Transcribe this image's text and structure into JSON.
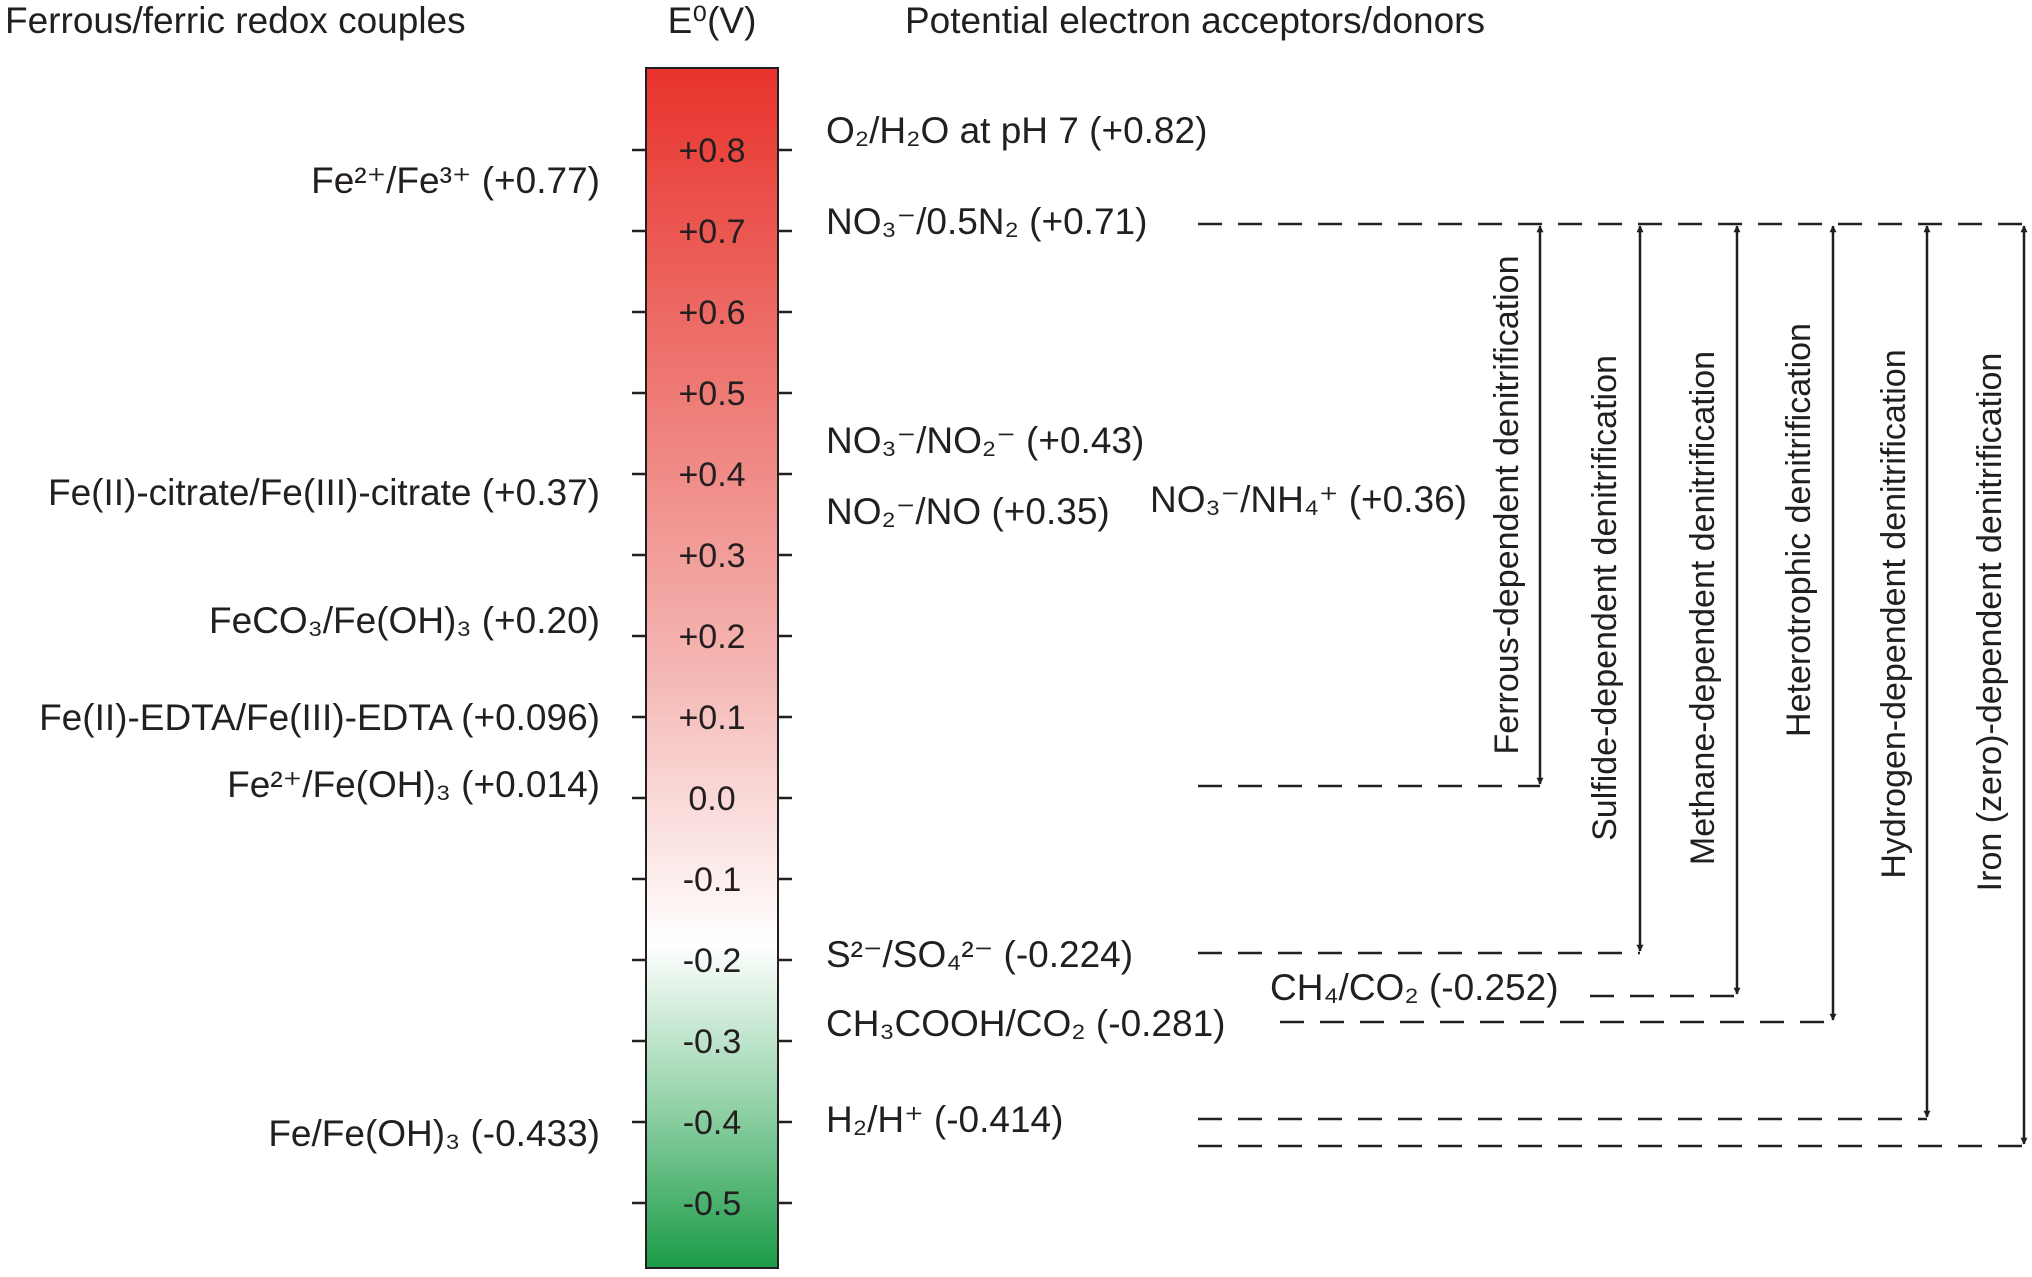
{
  "headers": {
    "left": "Ferrous/ferric redox couples",
    "center": "E⁰(V)",
    "right": "Potential electron acceptors/donors"
  },
  "scale": {
    "ticks": [
      "+0.8",
      "+0.7",
      "+0.6",
      "+0.5",
      "+0.4",
      "+0.3",
      "+0.2",
      "+0.1",
      "0.0",
      "-0.1",
      "-0.2",
      "-0.3",
      "-0.4",
      "-0.5"
    ],
    "colors": {
      "top": "#e8332c",
      "middle": "#ffffff",
      "bottom": "#1a9b47"
    }
  },
  "ferrous_couples": [
    {
      "label": "Fe²⁺/Fe³⁺ (+0.77)",
      "value": 0.77
    },
    {
      "label": "Fe(II)-citrate/Fe(III)-citrate (+0.37)",
      "value": 0.37
    },
    {
      "label": "FeCO₃/Fe(OH)₃ (+0.20)",
      "value": 0.2
    },
    {
      "label": "Fe(II)-EDTA/Fe(III)-EDTA (+0.096)",
      "value": 0.096
    },
    {
      "label": "Fe²⁺/Fe(OH)₃ (+0.014)",
      "value": 0.014
    },
    {
      "label": "Fe/Fe(OH)₃ (-0.433)",
      "value": -0.433
    }
  ],
  "acceptors_donors": [
    {
      "label": "O₂/H₂O at pH 7 (+0.82)",
      "value": 0.82
    },
    {
      "label": "NO₃⁻/0.5N₂ (+0.71)",
      "value": 0.71
    },
    {
      "label": "NO₃⁻/NO₂⁻ (+0.43)",
      "value": 0.43
    },
    {
      "label": "NO₂⁻/NO (+0.35)",
      "value": 0.35
    },
    {
      "label": "NO₃⁻/NH₄⁺ (+0.36)",
      "value": 0.36
    },
    {
      "label": "S²⁻/SO₄²⁻ (-0.224)",
      "value": -0.224
    },
    {
      "label": "CH₄/CO₂ (-0.252)",
      "value": -0.252
    },
    {
      "label": "CH₃COOH/CO₂ (-0.281)",
      "value": -0.281
    },
    {
      "label": "H₂/H⁺ (-0.414)",
      "value": -0.414
    }
  ],
  "processes": [
    {
      "label": "Ferrous-dependent denitrification"
    },
    {
      "label": "Sulfide-dependent denitrification"
    },
    {
      "label": "Methane-dependent denitrification"
    },
    {
      "label": "Heterotrophic denitrification"
    },
    {
      "label": "Hydrogen-dependent denitrification"
    },
    {
      "label": "Iron (zero)-dependent denitrification"
    }
  ]
}
